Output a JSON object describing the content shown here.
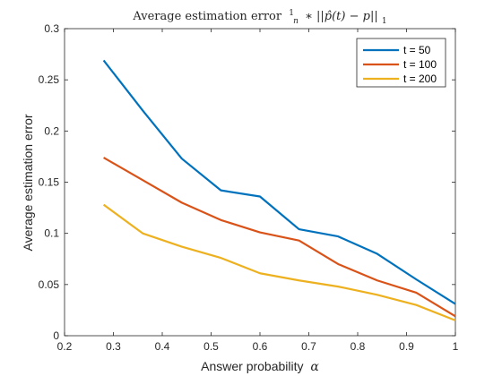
{
  "chart_data": {
    "type": "line",
    "title": "Average estimation error 1/n * ||p̂(t) − p||₁",
    "title_parts": {
      "main": "Average estimation error",
      "frac_num": "1",
      "frac_den": "n",
      "formula": "∗ ||p̂(t) − p||",
      "subscript": "1"
    },
    "xlabel": "Answer probability α",
    "xlabel_parts": {
      "text": "Answer probability",
      "symbol": "α"
    },
    "ylabel": "Average estimation error",
    "xlim": [
      0.2,
      1
    ],
    "ylim": [
      0,
      0.3
    ],
    "x_ticks": [
      "0.2",
      "0.3",
      "0.4",
      "0.5",
      "0.6",
      "0.7",
      "0.8",
      "0.9",
      "1"
    ],
    "y_ticks": [
      "0",
      "0.05",
      "0.1",
      "0.15",
      "0.2",
      "0.25",
      "0.3"
    ],
    "grid": false,
    "legend_position": "top-right",
    "x": [
      0.28,
      0.36,
      0.44,
      0.52,
      0.6,
      0.68,
      0.76,
      0.84,
      0.92,
      1.0
    ],
    "series": [
      {
        "name": "t = 50",
        "color": "#0072BD",
        "values": [
          0.269,
          0.22,
          0.173,
          0.142,
          0.136,
          0.104,
          0.097,
          0.08,
          0.055,
          0.031
        ]
      },
      {
        "name": "t = 100",
        "color": "#D95319",
        "values": [
          0.174,
          0.152,
          0.13,
          0.113,
          0.101,
          0.093,
          0.07,
          0.054,
          0.042,
          0.019
        ]
      },
      {
        "name": "t = 200",
        "color": "#EDB120",
        "values": [
          0.128,
          0.1,
          0.087,
          0.076,
          0.061,
          0.054,
          0.048,
          0.04,
          0.03,
          0.015
        ]
      }
    ]
  }
}
